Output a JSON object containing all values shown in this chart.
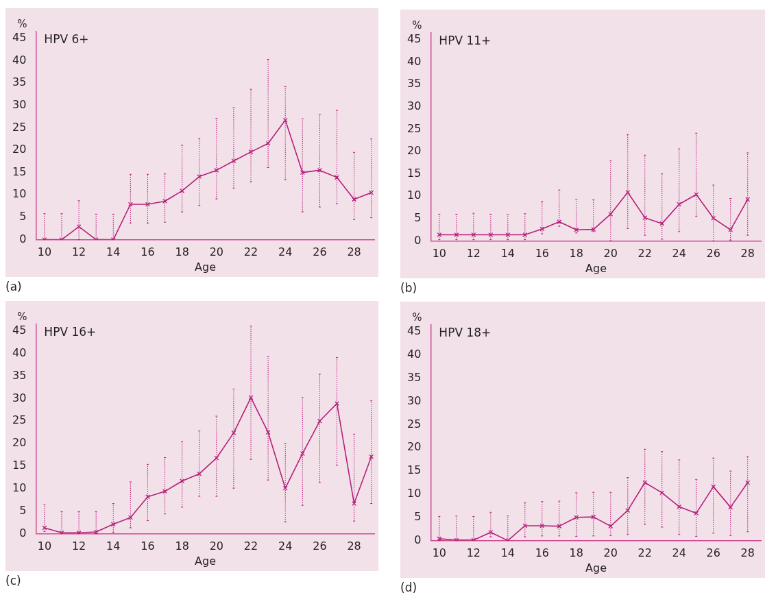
{
  "chart_data": [
    {
      "type": "line",
      "title": "HPV 6+",
      "xlabel": "Age",
      "ylabel": "%",
      "annotations": [
        "(a)"
      ],
      "marker": "cross",
      "line_style": "solid",
      "xlim": [
        9.5,
        29.2
      ],
      "xticks": [
        10,
        12,
        14,
        16,
        18,
        20,
        22,
        24,
        26,
        28
      ],
      "ylim": [
        0,
        46.5
      ],
      "yticks": [
        0,
        5,
        10,
        15,
        20,
        25,
        30,
        35,
        40,
        45
      ],
      "x": [
        10,
        11,
        12,
        13,
        14,
        15,
        16,
        17,
        18,
        19,
        20,
        21,
        22,
        23,
        24,
        25,
        26,
        27,
        28,
        29
      ],
      "series": [
        {
          "color": "#b5207a",
          "values": [
            0,
            0,
            2.9,
            0,
            0,
            7.9,
            7.9,
            8.6,
            10.9,
            14.1,
            15.5,
            17.6,
            19.6,
            21.5,
            26.7,
            15.0,
            15.5,
            13.9,
            9.0,
            10.5
          ],
          "errors": [
            [
              0,
              5.8
            ],
            [
              0,
              5.8
            ],
            [
              0,
              8.7
            ],
            [
              0,
              5.7
            ],
            [
              0,
              5.7
            ],
            [
              3.7,
              14.6
            ],
            [
              3.7,
              14.6
            ],
            [
              3.9,
              14.7
            ],
            [
              6.2,
              21.1
            ],
            [
              7.6,
              22.6
            ],
            [
              9.1,
              27.1
            ],
            [
              11.5,
              29.5
            ],
            [
              12.9,
              33.6
            ],
            [
              16.1,
              40.3
            ],
            [
              13.4,
              34.2
            ],
            [
              6.2,
              27.0
            ],
            [
              7.3,
              28.0
            ],
            [
              8.0,
              28.9
            ],
            [
              4.5,
              19.5
            ],
            [
              4.9,
              22.5
            ]
          ]
        }
      ]
    },
    {
      "type": "line",
      "title": "HPV 11+",
      "xlabel": "Age",
      "ylabel": "%",
      "annotations": [
        "(b)"
      ],
      "marker": "cross",
      "line_style": "solid",
      "xlim": [
        9.5,
        28.8
      ],
      "xticks": [
        10,
        12,
        14,
        16,
        18,
        20,
        22,
        24,
        26,
        28
      ],
      "ylim": [
        0,
        46.5
      ],
      "yticks": [
        0,
        5,
        10,
        15,
        20,
        25,
        30,
        35,
        40,
        45
      ],
      "x": [
        10,
        11,
        12,
        13,
        14,
        15,
        16,
        17,
        18,
        19,
        20,
        21,
        22,
        23,
        24,
        25,
        26,
        27,
        28
      ],
      "series": [
        {
          "color": "#b5207a",
          "values": [
            1.4,
            1.4,
            1.4,
            1.4,
            1.4,
            1.4,
            2.7,
            4.3,
            2.5,
            2.6,
            6.0,
            10.9,
            5.2,
            3.9,
            8.2,
            10.4,
            5.1,
            2.5,
            9.3
          ],
          "errors": [
            [
              0.3,
              6.0
            ],
            [
              0.3,
              6.0
            ],
            [
              0.3,
              6.2
            ],
            [
              0.3,
              6.0
            ],
            [
              0.3,
              5.9
            ],
            [
              0.3,
              6.1
            ],
            [
              1.6,
              8.9
            ],
            [
              3.3,
              11.4
            ],
            [
              1.8,
              9.2
            ],
            [
              2.1,
              9.2
            ],
            [
              0,
              17.9
            ],
            [
              2.8,
              23.8
            ],
            [
              1.3,
              19.2
            ],
            [
              0.4,
              15.0
            ],
            [
              2.1,
              20.6
            ],
            [
              5.5,
              24.1
            ],
            [
              0,
              12.5
            ],
            [
              0.2,
              9.5
            ],
            [
              1.3,
              19.7
            ]
          ]
        }
      ]
    },
    {
      "type": "line",
      "title": "HPV 16+",
      "xlabel": "Age",
      "ylabel": "%",
      "annotations": [
        "(c)"
      ],
      "marker": "cross",
      "line_style": "solid",
      "xlim": [
        9.5,
        29.2
      ],
      "xticks": [
        10,
        12,
        14,
        16,
        18,
        20,
        22,
        24,
        26,
        28
      ],
      "ylim": [
        0,
        46.5
      ],
      "yticks": [
        0,
        5,
        10,
        15,
        20,
        25,
        30,
        35,
        40,
        45
      ],
      "x": [
        10,
        11,
        12,
        13,
        14,
        15,
        16,
        17,
        18,
        19,
        20,
        21,
        22,
        23,
        24,
        25,
        26,
        27,
        28,
        29
      ],
      "series": [
        {
          "color": "#b5207a",
          "values": [
            1.3,
            0.2,
            0.2,
            0.4,
            2.1,
            3.6,
            8.2,
            9.4,
            11.7,
            13.3,
            16.8,
            22.4,
            30.2,
            22.5,
            10.1,
            17.8,
            25.0,
            28.9,
            6.7,
            17.1
          ],
          "errors": [
            [
              0.5,
              6.4
            ],
            [
              0,
              4.9
            ],
            [
              0,
              4.9
            ],
            [
              0,
              4.9
            ],
            [
              0.3,
              6.7
            ],
            [
              1.3,
              11.5
            ],
            [
              2.9,
              15.4
            ],
            [
              4.4,
              16.9
            ],
            [
              5.9,
              20.4
            ],
            [
              8.3,
              22.8
            ],
            [
              8.3,
              26.1
            ],
            [
              10.1,
              32.1
            ],
            [
              16.5,
              46.1
            ],
            [
              11.9,
              39.3
            ],
            [
              2.6,
              20.1
            ],
            [
              6.3,
              30.2
            ],
            [
              11.4,
              35.4
            ],
            [
              15.2,
              39.1
            ],
            [
              2.8,
              22.1
            ],
            [
              6.7,
              29.5
            ]
          ]
        }
      ]
    },
    {
      "type": "line",
      "title": "HPV 18+",
      "xlabel": "Age",
      "ylabel": "%",
      "annotations": [
        "(d)"
      ],
      "marker": "cross",
      "line_style": "solid",
      "xlim": [
        9.5,
        28.8
      ],
      "xticks": [
        10,
        12,
        14,
        16,
        18,
        20,
        22,
        24,
        26,
        28
      ],
      "ylim": [
        0,
        46.5
      ],
      "yticks": [
        0,
        5,
        10,
        15,
        20,
        25,
        30,
        35,
        40,
        45
      ],
      "x": [
        10,
        11,
        12,
        13,
        14,
        15,
        16,
        17,
        18,
        19,
        20,
        21,
        22,
        23,
        24,
        25,
        26,
        27,
        28
      ],
      "series": [
        {
          "color": "#b5207a",
          "values": [
            0.4,
            0.1,
            0.1,
            1.8,
            0,
            3.2,
            3.2,
            3.1,
            5.0,
            5.1,
            3.1,
            6.5,
            12.5,
            10.3,
            7.3,
            5.9,
            11.6,
            7.2,
            12.5
          ],
          "errors": [
            [
              0,
              5.2
            ],
            [
              0,
              5.3
            ],
            [
              0,
              5.2
            ],
            [
              0.8,
              6.1
            ],
            [
              0,
              5.3
            ],
            [
              0.8,
              8.2
            ],
            [
              1.0,
              8.4
            ],
            [
              1.0,
              8.5
            ],
            [
              0.9,
              10.3
            ],
            [
              1.0,
              10.4
            ],
            [
              1.1,
              10.4
            ],
            [
              1.3,
              13.6
            ],
            [
              3.5,
              19.7
            ],
            [
              2.9,
              19.2
            ],
            [
              1.3,
              17.4
            ],
            [
              0.9,
              13.2
            ],
            [
              1.6,
              17.8
            ],
            [
              1.1,
              15.0
            ],
            [
              1.9,
              18.1
            ]
          ]
        }
      ]
    }
  ]
}
